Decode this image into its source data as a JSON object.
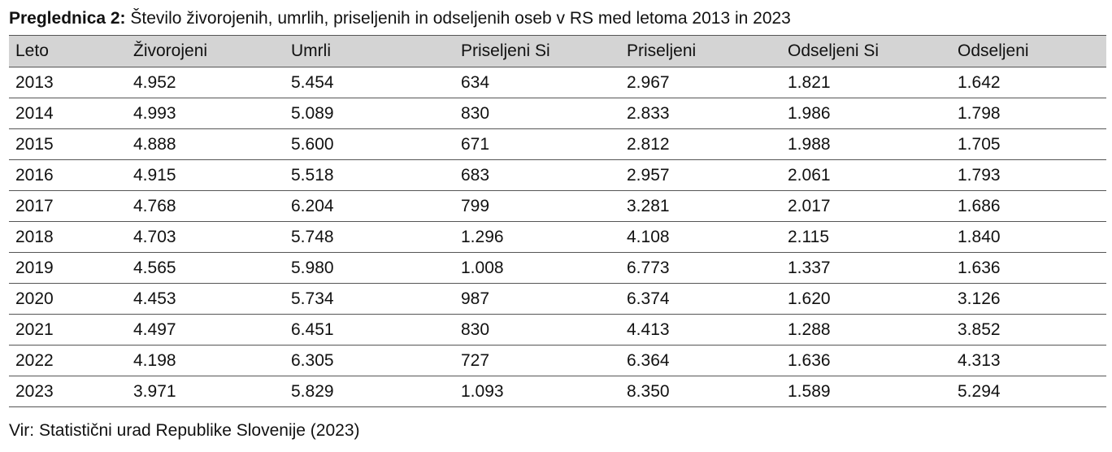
{
  "caption": {
    "label": "Preglednica 2:",
    "text": "Število živorojenih, umrlih, priseljenih in odseljenih oseb v RS med letoma 2013 in 2023"
  },
  "table": {
    "headers": [
      "Leto",
      "Živorojeni",
      "Umrli",
      "Priseljeni Si",
      "Priseljeni",
      "Odseljeni Si",
      "Odseljeni"
    ],
    "rows": [
      [
        "2013",
        "4.952",
        "5.454",
        "634",
        "2.967",
        "1.821",
        "1.642"
      ],
      [
        "2014",
        "4.993",
        "5.089",
        "830",
        "2.833",
        "1.986",
        "1.798"
      ],
      [
        "2015",
        "4.888",
        "5.600",
        "671",
        "2.812",
        "1.988",
        "1.705"
      ],
      [
        "2016",
        "4.915",
        "5.518",
        "683",
        "2.957",
        "2.061",
        "1.793"
      ],
      [
        "2017",
        "4.768",
        "6.204",
        "799",
        "3.281",
        "2.017",
        "1.686"
      ],
      [
        "2018",
        "4.703",
        "5.748",
        "1.296",
        "4.108",
        "2.115",
        "1.840"
      ],
      [
        "2019",
        "4.565",
        "5.980",
        "1.008",
        "6.773",
        "1.337",
        "1.636"
      ],
      [
        "2020",
        "4.453",
        "5.734",
        "987",
        "6.374",
        "1.620",
        "3.126"
      ],
      [
        "2021",
        "4.497",
        "6.451",
        "830",
        "4.413",
        "1.288",
        "3.852"
      ],
      [
        "2022",
        "4.198",
        "6.305",
        "727",
        "6.364",
        "1.636",
        "4.313"
      ],
      [
        "2023",
        "3.971",
        "5.829",
        "1.093",
        "8.350",
        "1.589",
        "5.294"
      ]
    ]
  },
  "source": "Vir: Statistični urad Republike Slovenije (2023)",
  "colors": {
    "header_background": "#d4d4d4",
    "rule": "#555555",
    "text": "#111111"
  }
}
